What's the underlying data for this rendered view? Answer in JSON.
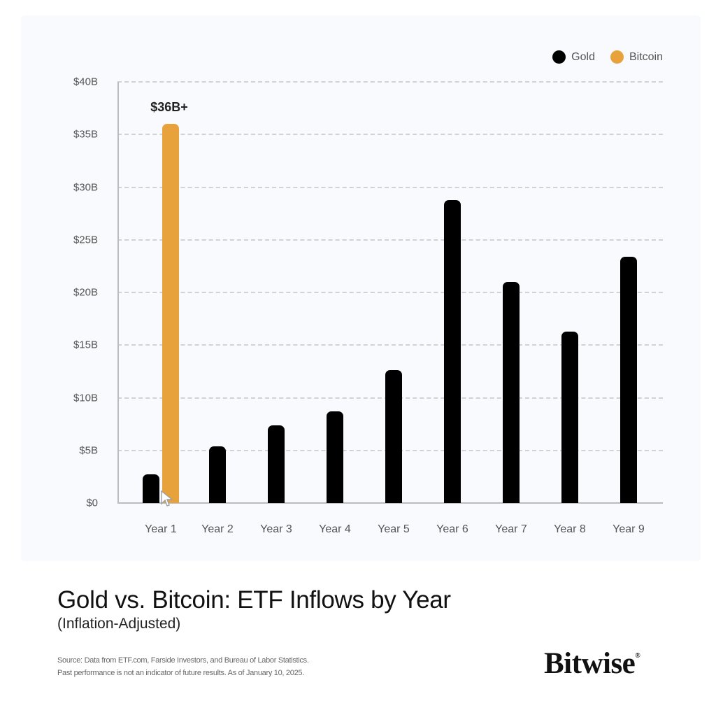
{
  "legend": {
    "items": [
      {
        "label": "Gold",
        "color": "#000000"
      },
      {
        "label": "Bitcoin",
        "color": "#e8a23c"
      }
    ]
  },
  "annotation": "$36B+",
  "title": "Gold vs. Bitcoin: ETF Inflows by Year",
  "subtitle": "(Inflation-Adjusted)",
  "source": {
    "line1": "Source: Data from ETF.com, Farside Investors, and Bureau of Labor Statistics.",
    "line2": "Past performance is not an indicator of future results. As of January 10, 2025."
  },
  "brand": {
    "name": "Bitwise",
    "mark": "®"
  },
  "chart_data": {
    "type": "bar",
    "title": "Gold vs. Bitcoin: ETF Inflows by Year",
    "subtitle": "(Inflation-Adjusted)",
    "xlabel": "",
    "ylabel": "",
    "categories": [
      "Year 1",
      "Year 2",
      "Year 3",
      "Year 4",
      "Year 5",
      "Year 6",
      "Year 7",
      "Year 8",
      "Year 9"
    ],
    "series": [
      {
        "name": "Gold",
        "color": "#000000",
        "values": [
          2.7,
          5.4,
          7.4,
          8.7,
          12.6,
          28.8,
          21.0,
          16.3,
          23.4
        ]
      },
      {
        "name": "Bitcoin",
        "color": "#e8a23c",
        "values": [
          36,
          null,
          null,
          null,
          null,
          null,
          null,
          null,
          null
        ]
      }
    ],
    "units": "billions USD",
    "ylim": [
      0,
      40
    ],
    "yticks": [
      "$0",
      "$5B",
      "$10B",
      "$15B",
      "$20B",
      "$25B",
      "$30B",
      "$35B",
      "$40B"
    ],
    "ytick_values": [
      0,
      5,
      10,
      15,
      20,
      25,
      30,
      35,
      40
    ],
    "grid": "horizontal dashed",
    "legend_position": "top-right",
    "annotations": [
      {
        "text": "$36B+",
        "category": "Year 1",
        "series": "Bitcoin"
      }
    ]
  }
}
